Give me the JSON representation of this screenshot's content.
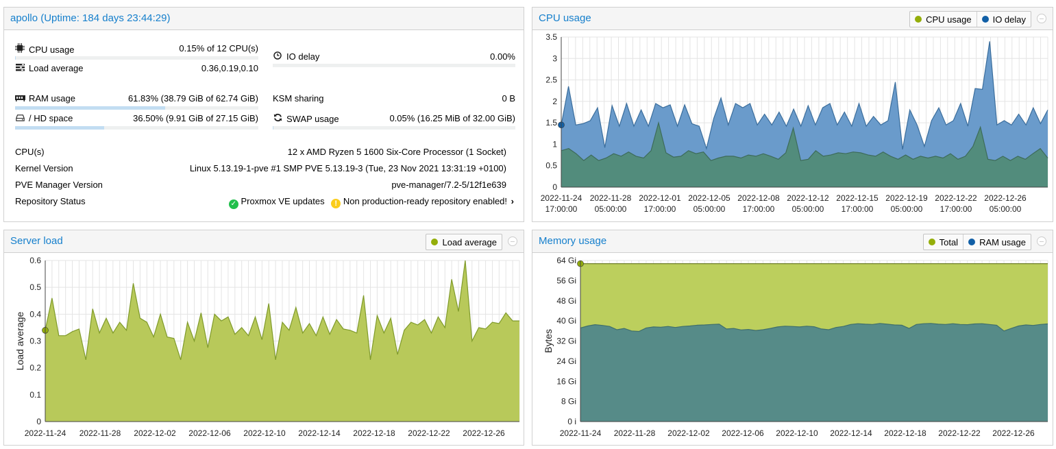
{
  "status": {
    "title": "apollo (Uptime: 184 days 23:44:29)",
    "cpu": {
      "label": "CPU usage",
      "value": "0.15% of 12 CPU(s)",
      "icon": "cpu-icon",
      "fraction": 0.0015
    },
    "io": {
      "label": "IO delay",
      "value": "0.00%",
      "icon": "clock-icon",
      "fraction": 0.0
    },
    "load": {
      "label": "Load average",
      "value": "0.36,0.19,0.10",
      "icon": "tasks-icon"
    },
    "ram": {
      "label": "RAM usage",
      "value": "61.83% (38.79 GiB of 62.74 GiB)",
      "icon": "memory-icon",
      "fraction": 0.6183
    },
    "ksm": {
      "label": "KSM sharing",
      "value": "0 B"
    },
    "hd": {
      "label": "/ HD space",
      "value": "36.50% (9.91 GiB of 27.15 GiB)",
      "icon": "hdd-icon",
      "fraction": 0.365
    },
    "swap": {
      "label": "SWAP usage",
      "value": "0.05% (16.25 MiB of 32.00 GiB)",
      "icon": "refresh-icon",
      "fraction": 0.0005
    },
    "cpus": {
      "label": "CPU(s)",
      "value": "12 x AMD Ryzen 5 1600 Six-Core Processor (1 Socket)"
    },
    "kernel": {
      "label": "Kernel Version",
      "value": "Linux 5.13.19-1-pve #1 SMP PVE 5.13.19-3 (Tue, 23 Nov 2021 13:31:19 +0100)"
    },
    "pve": {
      "label": "PVE Manager Version",
      "value": "pve-manager/7.2-5/12f1e639"
    },
    "repo": {
      "label": "Repository Status",
      "ok": "Proxmox VE updates",
      "warn": "Non production-ready repository enabled!"
    }
  },
  "colors": {
    "accent": "#157fcc",
    "cpu": "#94ae0a",
    "io": "#115fa6",
    "cpuFill": "#5a8a7e",
    "ioFill": "#6a9bcb",
    "load": "#b8c95a",
    "loadLine": "#7f9a2a",
    "total": "#bccf5d",
    "ram": "#568b88"
  },
  "cpu_chart": {
    "title": "CPU usage",
    "legend": [
      "CPU usage",
      "IO delay"
    ],
    "chart_data": {
      "type": "area",
      "ylim": [
        0,
        3.5
      ],
      "yticks": [
        "0",
        "0.5",
        "1",
        "1.5",
        "2",
        "2.5",
        "3",
        "3.5"
      ],
      "xticks": [
        [
          "2022-11-24",
          "17:00:00"
        ],
        [
          "2022-11-28",
          "05:00:00"
        ],
        [
          "2022-12-01",
          "17:00:00"
        ],
        [
          "2022-12-05",
          "05:00:00"
        ],
        [
          "2022-12-08",
          "17:00:00"
        ],
        [
          "2022-12-12",
          "05:00:00"
        ],
        [
          "2022-12-15",
          "17:00:00"
        ],
        [
          "2022-12-19",
          "05:00:00"
        ],
        [
          "2022-12-22",
          "17:00:00"
        ],
        [
          "2022-12-26",
          "05:00:00"
        ]
      ],
      "series": [
        {
          "name": "CPU usage",
          "values": [
            0.85,
            0.9,
            0.78,
            0.62,
            0.75,
            0.62,
            0.68,
            0.78,
            0.72,
            0.82,
            0.72,
            0.68,
            0.85,
            1.5,
            0.8,
            0.7,
            0.72,
            0.85,
            0.78,
            0.82,
            0.62,
            0.68,
            0.72,
            0.72,
            0.68,
            0.75,
            0.72,
            0.78,
            0.72,
            0.65,
            0.8,
            1.38,
            0.62,
            0.65,
            0.85,
            0.72,
            0.75,
            0.8,
            0.78,
            0.82,
            0.8,
            0.75,
            0.72,
            0.82,
            0.72,
            0.65,
            0.75,
            0.65,
            0.72,
            0.68,
            0.72,
            0.68,
            0.78,
            0.65,
            0.72,
            0.95,
            1.4,
            0.65,
            0.62,
            0.72,
            0.62,
            0.72,
            0.65,
            0.78,
            0.9,
            0.68
          ]
        },
        {
          "name": "IO delay",
          "values": [
            1.45,
            2.35,
            1.45,
            1.48,
            1.55,
            1.85,
            0.92,
            1.9,
            1.42,
            1.95,
            1.42,
            1.8,
            1.42,
            1.95,
            1.85,
            1.92,
            1.42,
            1.92,
            1.48,
            1.42,
            0.9,
            1.6,
            2.08,
            1.45,
            1.95,
            1.85,
            1.95,
            1.45,
            1.7,
            1.45,
            1.75,
            1.42,
            1.82,
            1.42,
            1.9,
            1.45,
            1.85,
            1.95,
            1.45,
            1.75,
            1.42,
            1.95,
            1.42,
            1.65,
            1.45,
            1.55,
            2.45,
            0.88,
            1.8,
            1.45,
            0.95,
            1.55,
            1.85,
            1.45,
            1.55,
            1.95,
            1.42,
            2.3,
            2.28,
            3.4,
            1.45,
            1.55,
            1.45,
            1.7,
            1.45,
            1.85,
            1.48,
            1.8
          ]
        }
      ]
    }
  },
  "load_chart": {
    "title": "Server load",
    "legend": [
      "Load average"
    ],
    "chart_data": {
      "type": "area",
      "ylim": [
        0,
        0.6
      ],
      "ylabel": "Load average",
      "yticks": [
        "0",
        "0.1",
        "0.2",
        "0.3",
        "0.4",
        "0.5",
        "0.6"
      ],
      "xticks": [
        "2022-11-24",
        "2022-11-28",
        "2022-12-02",
        "2022-12-06",
        "2022-12-10",
        "2022-12-14",
        "2022-12-18",
        "2022-12-22",
        "2022-12-26"
      ],
      "series": [
        {
          "name": "Load average",
          "values": [
            0.34,
            0.46,
            0.32,
            0.32,
            0.335,
            0.345,
            0.23,
            0.42,
            0.33,
            0.385,
            0.33,
            0.37,
            0.34,
            0.515,
            0.385,
            0.37,
            0.315,
            0.4,
            0.315,
            0.31,
            0.23,
            0.37,
            0.3,
            0.405,
            0.275,
            0.4,
            0.375,
            0.39,
            0.325,
            0.35,
            0.32,
            0.39,
            0.305,
            0.44,
            0.23,
            0.37,
            0.34,
            0.425,
            0.33,
            0.365,
            0.32,
            0.39,
            0.325,
            0.38,
            0.345,
            0.34,
            0.33,
            0.47,
            0.23,
            0.395,
            0.33,
            0.385,
            0.25,
            0.34,
            0.37,
            0.36,
            0.38,
            0.33,
            0.39,
            0.35,
            0.53,
            0.41,
            0.6,
            0.3,
            0.35,
            0.345,
            0.37,
            0.365,
            0.405,
            0.375,
            0.375
          ]
        }
      ]
    }
  },
  "mem_chart": {
    "title": "Memory usage",
    "legend": [
      "Total",
      "RAM usage"
    ],
    "chart_data": {
      "type": "area",
      "ylabel": "Bytes",
      "ylim": [
        0,
        64
      ],
      "yticks": [
        "0 i",
        "8 Gi",
        "16 Gi",
        "24 Gi",
        "32 Gi",
        "40 Gi",
        "48 Gi",
        "56 Gi",
        "64 Gi"
      ],
      "xticks": [
        "2022-11-24",
        "2022-11-28",
        "2022-12-02",
        "2022-12-06",
        "2022-12-10",
        "2022-12-14",
        "2022-12-18",
        "2022-12-22",
        "2022-12-26"
      ],
      "series": [
        {
          "name": "Total",
          "values": [
            62.74,
            62.74
          ]
        },
        {
          "name": "RAM usage",
          "values": [
            37.2,
            38.0,
            38.5,
            38.2,
            37.8,
            36.5,
            37.0,
            36.0,
            35.8,
            37.2,
            37.6,
            37.5,
            37.8,
            37.4,
            37.8,
            38.0,
            38.3,
            38.4,
            38.6,
            38.7,
            36.8,
            37.0,
            36.4,
            36.6,
            36.2,
            36.5,
            37.0,
            37.6,
            37.9,
            37.8,
            37.6,
            37.9,
            37.7,
            36.8,
            36.5,
            37.4,
            37.8,
            38.6,
            38.9,
            38.7,
            38.6,
            39.0,
            38.7,
            38.4,
            38.3,
            37.0,
            38.6,
            38.9,
            39.0,
            38.7,
            38.6,
            38.9,
            38.6,
            38.5,
            38.8,
            38.9,
            38.6,
            38.3,
            36.0,
            37.0,
            38.0,
            38.4,
            38.2,
            38.6,
            38.8
          ]
        }
      ]
    }
  }
}
